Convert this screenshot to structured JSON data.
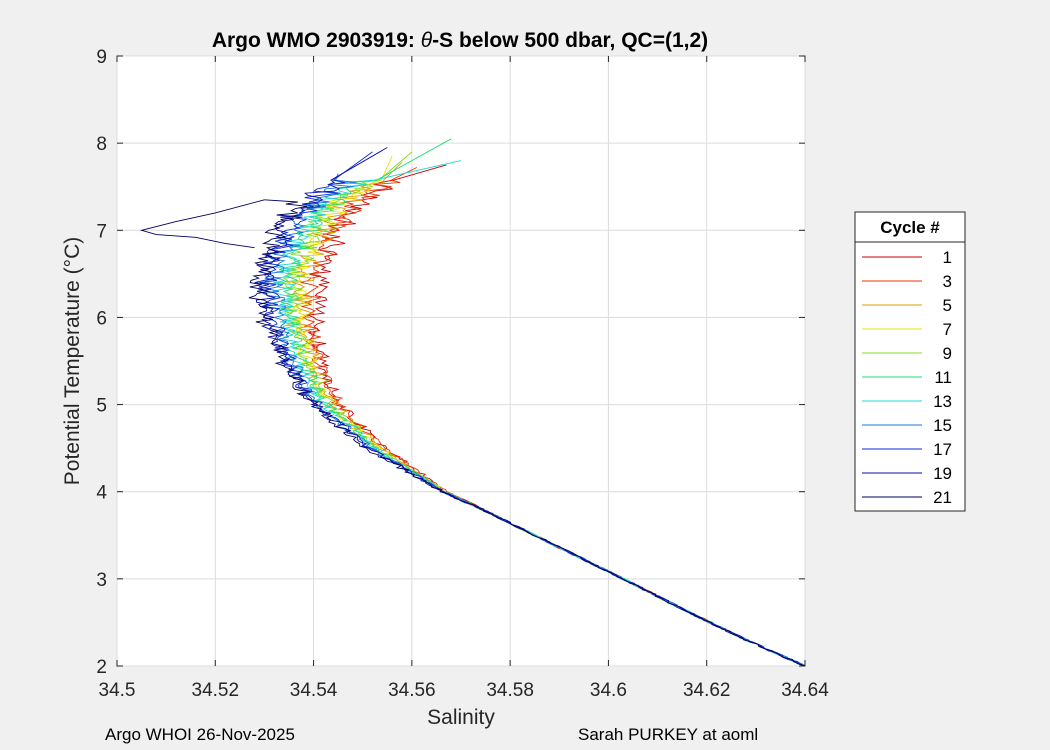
{
  "chart_data": {
    "type": "line",
    "title": "Argo WMO 2903919: θ-S below 500 dbar,  QC=(1,2)",
    "title_prefix": "Argo WMO 2903919: ",
    "title_theta": "θ",
    "title_suffix": "-S below 500 dbar,  QC=(1,2)",
    "xlabel": "Salinity",
    "ylabel": "Potential Temperature (°C)",
    "xlim": [
      34.5,
      34.64
    ],
    "ylim": [
      2,
      9
    ],
    "xticks": [
      34.5,
      34.52,
      34.54,
      34.56,
      34.58,
      34.6,
      34.62,
      34.64
    ],
    "xtick_labels": [
      "34.5",
      "34.52",
      "34.54",
      "34.56",
      "34.58",
      "34.6",
      "34.62",
      "34.64"
    ],
    "yticks": [
      2,
      3,
      4,
      5,
      6,
      7,
      8,
      9
    ],
    "ytick_labels": [
      "2",
      "3",
      "4",
      "5",
      "6",
      "7",
      "8",
      "9"
    ],
    "grid": true,
    "legend": {
      "title": "Cycle #",
      "placement": "outside-right",
      "entries": [
        {
          "label": "1",
          "color": "#cc0000"
        },
        {
          "label": "3",
          "color": "#ee3300"
        },
        {
          "label": "5",
          "color": "#dd9900"
        },
        {
          "label": "7",
          "color": "#e6e600"
        },
        {
          "label": "9",
          "color": "#80dd20"
        },
        {
          "label": "11",
          "color": "#20dd70"
        },
        {
          "label": "13",
          "color": "#20d8d8"
        },
        {
          "label": "15",
          "color": "#1a78d8"
        },
        {
          "label": "17",
          "color": "#0a2ed0"
        },
        {
          "label": "19",
          "color": "#0a0aa8"
        },
        {
          "label": "21",
          "color": "#000060"
        }
      ]
    },
    "base_profile": {
      "theta": [
        2.0,
        2.3,
        2.6,
        3.0,
        3.5,
        4.0,
        4.5,
        5.0,
        5.5,
        6.0,
        6.5,
        7.0,
        7.3,
        7.6
      ],
      "salinity": [
        34.64,
        34.628,
        34.617,
        34.603,
        34.585,
        34.567,
        34.554,
        34.545,
        34.541,
        34.5395,
        34.54,
        34.544,
        34.548,
        34.556
      ]
    },
    "series": [
      {
        "cycle": 1,
        "color": "#cc0000",
        "offset": 0.001,
        "top_theta": 7.75,
        "top_salinity": 34.567
      },
      {
        "cycle": 3,
        "color": "#ee3300",
        "offset": 0.0,
        "top_theta": 7.72,
        "top_salinity": 34.561
      },
      {
        "cycle": 5,
        "color": "#dd9900",
        "offset": -0.002,
        "top_theta": 7.78,
        "top_salinity": 34.558
      },
      {
        "cycle": 7,
        "color": "#e6e600",
        "offset": -0.003,
        "top_theta": 7.85,
        "top_salinity": 34.556
      },
      {
        "cycle": 9,
        "color": "#80dd20",
        "offset": -0.004,
        "top_theta": 7.9,
        "top_salinity": 34.56
      },
      {
        "cycle": 11,
        "color": "#20dd70",
        "offset": -0.005,
        "top_theta": 8.05,
        "top_salinity": 34.568
      },
      {
        "cycle": 13,
        "color": "#20d8d8",
        "offset": -0.006,
        "top_theta": 7.8,
        "top_salinity": 34.57
      },
      {
        "cycle": 15,
        "color": "#1a78d8",
        "offset": -0.008,
        "top_theta": 7.65,
        "top_salinity": 34.545
      },
      {
        "cycle": 17,
        "color": "#0a2ed0",
        "offset": -0.009,
        "top_theta": 7.9,
        "top_salinity": 34.552
      },
      {
        "cycle": 19,
        "color": "#0a0aa8",
        "offset": -0.01,
        "top_theta": 7.95,
        "top_salinity": 34.555
      },
      {
        "cycle": 21,
        "color": "#000060",
        "offset": -0.011,
        "top_theta": 7.35,
        "top_salinity": 34.53
      }
    ],
    "excursion": {
      "cycle": 21,
      "theta": [
        7.35,
        7.2,
        7.1,
        7.0,
        6.95,
        6.92,
        6.85,
        6.8
      ],
      "salinity": [
        34.53,
        34.52,
        34.512,
        34.505,
        34.508,
        34.516,
        34.522,
        34.528
      ]
    }
  },
  "footer": {
    "left": "Argo WHOI 26-Nov-2025",
    "right": "Sarah PURKEY at aoml"
  }
}
